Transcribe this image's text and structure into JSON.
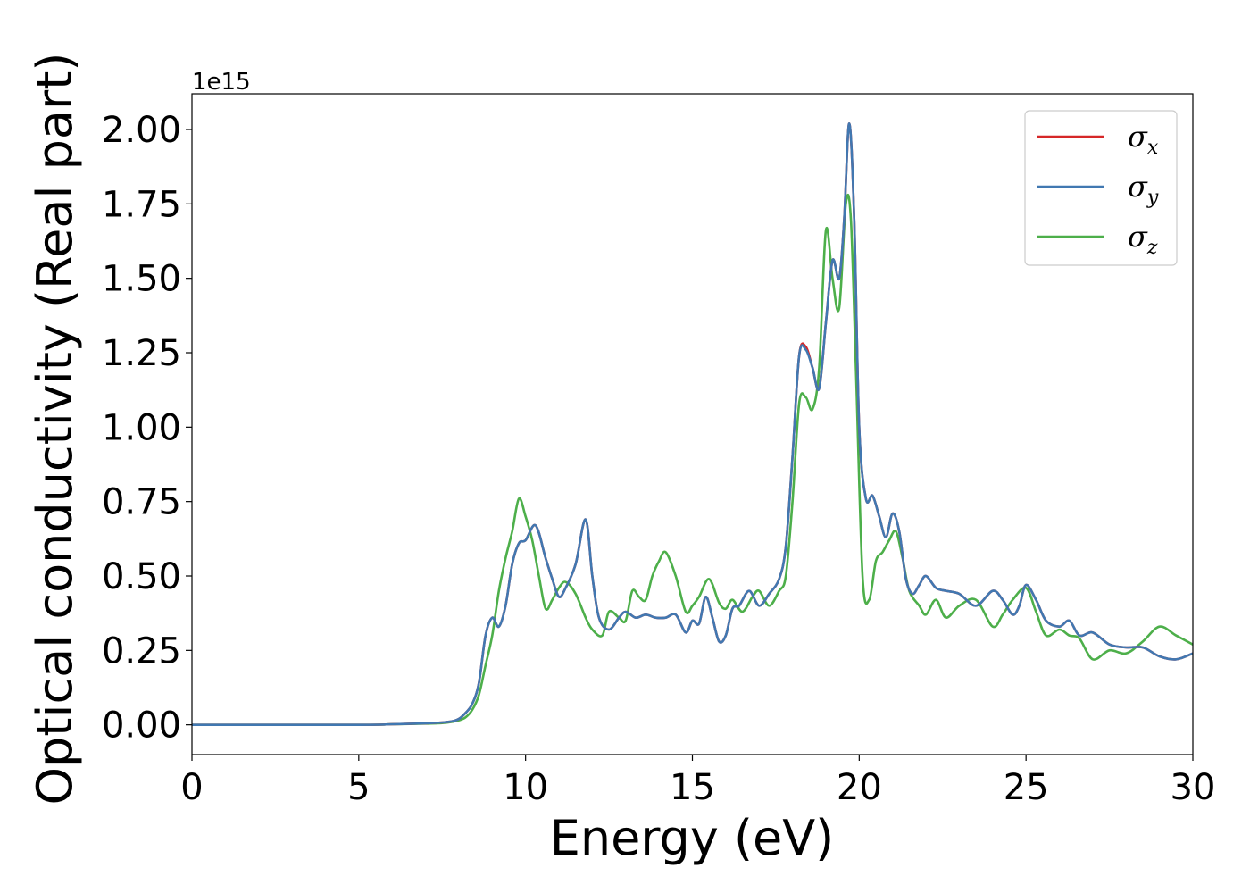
{
  "chart_data": {
    "type": "line",
    "xlabel": "Energy (eV)",
    "ylabel": "Optical conductivity (Real part)",
    "y_offset_label": "1e15",
    "xlim": [
      0,
      30
    ],
    "ylim": [
      -0.1,
      2.12
    ],
    "xticks": [
      0,
      5,
      10,
      15,
      20,
      25,
      30
    ],
    "xtick_labels": [
      "0",
      "5",
      "10",
      "15",
      "20",
      "25",
      "30"
    ],
    "yticks": [
      0.0,
      0.25,
      0.5,
      0.75,
      1.0,
      1.25,
      1.5,
      1.75,
      2.0
    ],
    "ytick_labels": [
      "0.00",
      "0.25",
      "0.50",
      "0.75",
      "1.00",
      "1.25",
      "1.50",
      "1.75",
      "2.00"
    ],
    "grid": false,
    "legend_position": "top-right",
    "series": [
      {
        "name": "σx",
        "legend_main": "σ",
        "legend_sub": "x",
        "color": "#d62728",
        "x": [
          0,
          5,
          6,
          7,
          7.5,
          7.8,
          8.0,
          8.2,
          8.4,
          8.6,
          8.8,
          9.0,
          9.2,
          9.4,
          9.6,
          9.8,
          10.0,
          10.3,
          10.6,
          10.8,
          11.0,
          11.2,
          11.5,
          11.8,
          12.0,
          12.2,
          12.5,
          12.8,
          13.0,
          13.3,
          13.6,
          13.9,
          14.2,
          14.5,
          14.8,
          15.0,
          15.2,
          15.4,
          15.6,
          15.8,
          16.0,
          16.2,
          16.4,
          16.7,
          17.0,
          17.3,
          17.6,
          17.8,
          18.0,
          18.2,
          18.4,
          18.6,
          18.8,
          19.0,
          19.2,
          19.4,
          19.55,
          19.7,
          19.85,
          20.0,
          20.2,
          20.4,
          20.6,
          20.8,
          21.0,
          21.2,
          21.4,
          21.6,
          21.8,
          22.0,
          22.3,
          22.6,
          23.0,
          23.5,
          24.0,
          24.3,
          24.6,
          24.8,
          25.0,
          25.3,
          25.6,
          26.0,
          26.3,
          26.6,
          27.0,
          27.5,
          28.0,
          28.5,
          29.0,
          29.5,
          30.0
        ],
        "values": [
          0,
          0,
          0.002,
          0.005,
          0.008,
          0.012,
          0.02,
          0.04,
          0.07,
          0.14,
          0.3,
          0.36,
          0.33,
          0.4,
          0.54,
          0.61,
          0.62,
          0.67,
          0.56,
          0.49,
          0.43,
          0.46,
          0.54,
          0.69,
          0.5,
          0.36,
          0.32,
          0.36,
          0.38,
          0.36,
          0.37,
          0.36,
          0.36,
          0.37,
          0.31,
          0.35,
          0.34,
          0.43,
          0.36,
          0.28,
          0.3,
          0.39,
          0.4,
          0.45,
          0.4,
          0.44,
          0.49,
          0.6,
          0.9,
          1.24,
          1.27,
          1.2,
          1.13,
          1.35,
          1.56,
          1.5,
          1.7,
          2.02,
          1.7,
          1.0,
          0.76,
          0.77,
          0.7,
          0.63,
          0.71,
          0.65,
          0.49,
          0.44,
          0.47,
          0.5,
          0.46,
          0.45,
          0.44,
          0.4,
          0.45,
          0.42,
          0.37,
          0.4,
          0.47,
          0.42,
          0.35,
          0.33,
          0.35,
          0.3,
          0.31,
          0.27,
          0.26,
          0.26,
          0.23,
          0.22,
          0.24
        ]
      },
      {
        "name": "σy",
        "legend_main": "σ",
        "legend_sub": "y",
        "color": "#4178b1",
        "x": [
          0,
          5,
          6,
          7,
          7.5,
          7.8,
          8.0,
          8.2,
          8.4,
          8.6,
          8.8,
          9.0,
          9.2,
          9.4,
          9.6,
          9.8,
          10.0,
          10.3,
          10.6,
          10.8,
          11.0,
          11.2,
          11.5,
          11.8,
          12.0,
          12.2,
          12.5,
          12.8,
          13.0,
          13.3,
          13.6,
          13.9,
          14.2,
          14.5,
          14.8,
          15.0,
          15.2,
          15.4,
          15.6,
          15.8,
          16.0,
          16.2,
          16.4,
          16.7,
          17.0,
          17.3,
          17.6,
          17.8,
          18.0,
          18.2,
          18.4,
          18.6,
          18.8,
          19.0,
          19.2,
          19.4,
          19.55,
          19.7,
          19.85,
          20.0,
          20.2,
          20.4,
          20.6,
          20.8,
          21.0,
          21.2,
          21.4,
          21.6,
          21.8,
          22.0,
          22.3,
          22.6,
          23.0,
          23.5,
          24.0,
          24.3,
          24.6,
          24.8,
          25.0,
          25.3,
          25.6,
          26.0,
          26.3,
          26.6,
          27.0,
          27.5,
          28.0,
          28.5,
          29.0,
          29.5,
          30.0
        ],
        "values": [
          0,
          0,
          0.002,
          0.005,
          0.008,
          0.012,
          0.02,
          0.04,
          0.07,
          0.14,
          0.3,
          0.36,
          0.33,
          0.4,
          0.54,
          0.61,
          0.62,
          0.67,
          0.56,
          0.49,
          0.43,
          0.46,
          0.54,
          0.69,
          0.5,
          0.36,
          0.32,
          0.36,
          0.38,
          0.36,
          0.37,
          0.36,
          0.36,
          0.37,
          0.31,
          0.35,
          0.34,
          0.43,
          0.36,
          0.28,
          0.3,
          0.39,
          0.4,
          0.45,
          0.4,
          0.44,
          0.49,
          0.6,
          0.9,
          1.24,
          1.26,
          1.2,
          1.13,
          1.35,
          1.56,
          1.5,
          1.7,
          2.02,
          1.7,
          1.0,
          0.76,
          0.77,
          0.7,
          0.63,
          0.71,
          0.65,
          0.49,
          0.44,
          0.47,
          0.5,
          0.46,
          0.45,
          0.44,
          0.4,
          0.45,
          0.42,
          0.37,
          0.4,
          0.47,
          0.42,
          0.35,
          0.33,
          0.35,
          0.3,
          0.31,
          0.27,
          0.26,
          0.26,
          0.23,
          0.22,
          0.24
        ]
      },
      {
        "name": "σz",
        "legend_main": "σ",
        "legend_sub": "z",
        "color": "#4daf4a",
        "x": [
          0,
          5,
          6,
          7,
          7.5,
          7.8,
          8.0,
          8.2,
          8.4,
          8.6,
          8.8,
          9.0,
          9.2,
          9.4,
          9.6,
          9.8,
          10.0,
          10.2,
          10.4,
          10.6,
          10.8,
          11.0,
          11.2,
          11.5,
          11.8,
          12.0,
          12.3,
          12.5,
          12.8,
          13.0,
          13.2,
          13.4,
          13.6,
          13.8,
          14.0,
          14.2,
          14.5,
          14.8,
          15.0,
          15.2,
          15.5,
          15.8,
          16.0,
          16.2,
          16.5,
          16.8,
          17.0,
          17.3,
          17.6,
          17.8,
          18.0,
          18.2,
          18.4,
          18.6,
          18.8,
          19.0,
          19.2,
          19.4,
          19.6,
          19.75,
          19.9,
          20.1,
          20.3,
          20.5,
          20.7,
          20.9,
          21.1,
          21.3,
          21.5,
          21.8,
          22.0,
          22.3,
          22.6,
          23.0,
          23.5,
          24.0,
          24.3,
          24.6,
          25.0,
          25.3,
          25.6,
          26.0,
          26.3,
          26.6,
          27.0,
          27.5,
          28.0,
          28.5,
          29.0,
          29.5,
          30.0
        ],
        "values": [
          0,
          0,
          0.002,
          0.004,
          0.006,
          0.01,
          0.015,
          0.025,
          0.05,
          0.1,
          0.2,
          0.3,
          0.45,
          0.56,
          0.65,
          0.76,
          0.7,
          0.62,
          0.5,
          0.39,
          0.42,
          0.46,
          0.48,
          0.44,
          0.36,
          0.32,
          0.3,
          0.38,
          0.36,
          0.35,
          0.45,
          0.43,
          0.42,
          0.5,
          0.55,
          0.58,
          0.5,
          0.38,
          0.4,
          0.43,
          0.49,
          0.41,
          0.39,
          0.42,
          0.38,
          0.43,
          0.45,
          0.4,
          0.45,
          0.5,
          0.75,
          1.08,
          1.1,
          1.06,
          1.2,
          1.66,
          1.5,
          1.4,
          1.75,
          1.7,
          1.2,
          0.5,
          0.42,
          0.55,
          0.58,
          0.62,
          0.65,
          0.56,
          0.45,
          0.4,
          0.37,
          0.42,
          0.36,
          0.4,
          0.42,
          0.33,
          0.37,
          0.42,
          0.46,
          0.38,
          0.3,
          0.32,
          0.3,
          0.29,
          0.22,
          0.25,
          0.24,
          0.28,
          0.33,
          0.3,
          0.27
        ]
      }
    ]
  }
}
